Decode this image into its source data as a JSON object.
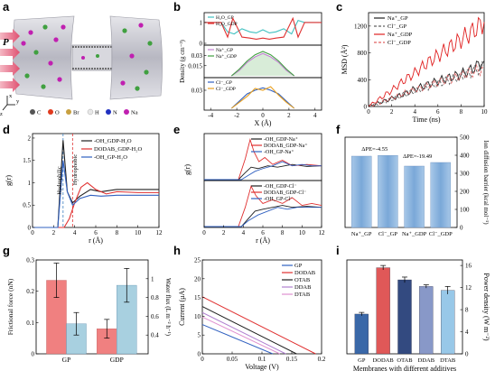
{
  "panels": {
    "a": {
      "letter": "a",
      "pressure_label": "P",
      "axis_labels": {
        "x": "x",
        "y": "y",
        "z": "z"
      },
      "atom_legend": [
        {
          "label": "C",
          "color": "#555555"
        },
        {
          "label": "O",
          "color": "#e03a1e"
        },
        {
          "label": "Br",
          "color": "#c8a040"
        },
        {
          "label": "H",
          "color": "#e8e8e8"
        },
        {
          "label": "N",
          "color": "#2030c0"
        },
        {
          "label": "Na",
          "color": "#c020b0"
        }
      ]
    },
    "b": {
      "letter": "b"
    },
    "c": {
      "letter": "c"
    },
    "d": {
      "letter": "d"
    },
    "e": {
      "letter": "e"
    },
    "f": {
      "letter": "f"
    },
    "g": {
      "letter": "g"
    },
    "h": {
      "letter": "h"
    },
    "i": {
      "letter": "i"
    }
  },
  "chart_data": [
    {
      "id": "b",
      "type": "line",
      "xlabel": "X (Å)",
      "ylabel": "Density (g cm⁻³)",
      "x_ticks": [
        -4,
        -2,
        0,
        2,
        4
      ],
      "xlim": [
        -4.5,
        4.5
      ],
      "subplots": [
        {
          "ylim": [
            0,
            1.3
          ],
          "y_ticks": [
            0,
            1
          ],
          "series": [
            {
              "name": "H₂O_GP",
              "color": "#40c0c0",
              "x": [
                -4.5,
                -3.2,
                -2.7,
                -2.2,
                -1.6,
                -1.0,
                -0.5,
                0,
                0.5,
                1.0,
                1.6,
                2.2,
                2.7,
                3.2,
                4.5
              ],
              "y": [
                1.0,
                1.0,
                0.55,
                0.45,
                0.7,
                0.55,
                0.5,
                0.65,
                0.5,
                0.55,
                0.7,
                0.45,
                1.1,
                1.0,
                1.0
              ]
            },
            {
              "name": "H₂O_GDP",
              "color": "#e03030",
              "x": [
                -4.5,
                -3.2,
                -2.7,
                -2.3,
                -1.6,
                -1.0,
                -0.5,
                0,
                0.5,
                1.0,
                1.6,
                2.3,
                2.7,
                3.2,
                4.5
              ],
              "y": [
                1.0,
                1.0,
                0.3,
                1.2,
                0.3,
                0.25,
                0.2,
                0.25,
                0.2,
                0.25,
                0.3,
                1.2,
                0.3,
                1.0,
                1.0
              ]
            }
          ]
        },
        {
          "ylim": [
            0,
            0.04
          ],
          "y_ticks": [
            0.015,
            0.03
          ],
          "series": [
            {
              "name": "Na⁺_GP",
              "color": "#c080d0",
              "x": [
                -2.4,
                -1.8,
                -1.2,
                -0.6,
                0,
                0.6,
                1.2,
                1.8,
                2.4
              ],
              "y": [
                0,
                0.008,
                0.02,
                0.028,
                0.033,
                0.028,
                0.02,
                0.008,
                0
              ]
            },
            {
              "name": "Na⁺_GDP",
              "color": "#40a040",
              "x": [
                -2.4,
                -1.8,
                -1.2,
                -0.6,
                0,
                0.6,
                1.2,
                1.8,
                2.4
              ],
              "y": [
                0,
                0.01,
                0.022,
                0.031,
                0.036,
                0.031,
                0.022,
                0.01,
                0
              ]
            }
          ]
        },
        {
          "ylim": [
            0,
            0.045
          ],
          "y_ticks": [
            0.03
          ],
          "series": [
            {
              "name": "Cl⁻_GP",
              "color": "#3060c0",
              "x": [
                -2.4,
                -1.8,
                -1.2,
                -0.6,
                0,
                0.6,
                1.2,
                1.8,
                2.4
              ],
              "y": [
                0,
                0.012,
                0.024,
                0.03,
                0.034,
                0.03,
                0.024,
                0.012,
                0
              ]
            },
            {
              "name": "Cl⁻_GDP",
              "color": "#e8a020",
              "x": [
                -2.4,
                -1.8,
                -1.2,
                -0.6,
                0,
                0.6,
                1.2,
                1.8,
                2.4
              ],
              "y": [
                0,
                0.01,
                0.02,
                0.033,
                0.03,
                0.036,
                0.022,
                0.01,
                0
              ]
            }
          ]
        }
      ]
    },
    {
      "id": "c",
      "type": "line",
      "xlabel": "Time (ns)",
      "ylabel": "MSD (Å²)",
      "xlim": [
        0,
        10
      ],
      "ylim": [
        0,
        1400
      ],
      "x_ticks": [
        0,
        2,
        4,
        6,
        8,
        10
      ],
      "y_ticks": [
        0,
        400,
        800,
        1200
      ],
      "series": [
        {
          "name": "Na⁺_GP",
          "color": "#202020",
          "dash": false,
          "x": [
            0,
            1,
            2,
            3,
            4,
            5,
            6,
            7,
            8,
            9,
            10
          ],
          "y": [
            0,
            60,
            120,
            180,
            260,
            320,
            380,
            430,
            480,
            560,
            680
          ]
        },
        {
          "name": "Cl⁻_GP",
          "color": "#606060",
          "dash": true,
          "x": [
            0,
            1,
            2,
            3,
            4,
            5,
            6,
            7,
            8,
            9,
            10
          ],
          "y": [
            0,
            50,
            110,
            170,
            230,
            290,
            340,
            400,
            450,
            520,
            600
          ]
        },
        {
          "name": "Na⁺_GDP",
          "color": "#e02020",
          "dash": false,
          "x": [
            0,
            1,
            2,
            3,
            4,
            5,
            6,
            7,
            8,
            9,
            10
          ],
          "y": [
            0,
            120,
            240,
            380,
            500,
            640,
            760,
            880,
            1000,
            1120,
            1260
          ]
        },
        {
          "name": "Cl⁻_GDP",
          "color": "#e06060",
          "dash": true,
          "x": [
            0,
            1,
            2,
            3,
            4,
            5,
            6,
            7,
            8,
            9,
            10
          ],
          "y": [
            0,
            60,
            120,
            190,
            250,
            300,
            360,
            410,
            460,
            520,
            560
          ]
        }
      ]
    },
    {
      "id": "d",
      "type": "line",
      "xlabel": "r (Å)",
      "ylabel": "g(r)",
      "xlim": [
        0,
        12
      ],
      "ylim": [
        0,
        2.1
      ],
      "x_ticks": [
        0,
        2,
        4,
        6,
        8,
        10,
        12
      ],
      "y_ticks": [
        0.0,
        0.5,
        1.0,
        1.5,
        2.0
      ],
      "annotations": [
        {
          "text": "Hydrophilic",
          "color": "#4080c0"
        },
        {
          "text": "Hydrophobic",
          "color": "#e03030"
        }
      ],
      "vlines": [
        {
          "x": 2.9,
          "color": "#4080c0"
        },
        {
          "x": 3.8,
          "color": "#e03030"
        }
      ],
      "series": [
        {
          "name": "-OH_GDP-H₂O",
          "color": "#202020",
          "x": [
            0,
            2.4,
            2.7,
            2.9,
            3.3,
            3.8,
            4.5,
            5.5,
            6.5,
            8,
            10,
            12
          ],
          "y": [
            0,
            0,
            1.2,
            1.95,
            0.8,
            0.55,
            0.7,
            0.85,
            0.8,
            0.85,
            0.85,
            0.85
          ]
        },
        {
          "name": "DODAB_GDP-H₂O",
          "color": "#e03030",
          "x": [
            0,
            3.0,
            3.5,
            4.0,
            4.6,
            5.2,
            6,
            7,
            8,
            10,
            12
          ],
          "y": [
            0,
            0,
            0.2,
            0.55,
            0.9,
            1.0,
            0.85,
            0.75,
            0.8,
            0.78,
            0.78
          ]
        },
        {
          "name": "-OH_GP-H₂O",
          "color": "#3060c0",
          "x": [
            0,
            2.4,
            2.7,
            2.9,
            3.3,
            3.8,
            4.5,
            5.5,
            6.5,
            8,
            10,
            12
          ],
          "y": [
            0,
            0,
            0.9,
            1.5,
            0.8,
            0.5,
            0.65,
            0.72,
            0.7,
            0.72,
            0.72,
            0.72
          ]
        }
      ]
    },
    {
      "id": "e",
      "type": "line",
      "xlabel": "r (Å)",
      "ylabel": "g(r)",
      "xlim": [
        0,
        12
      ],
      "x_ticks": [
        0,
        2,
        4,
        6,
        8,
        10,
        12
      ],
      "subplots": [
        {
          "ylim": [
            0,
            3.2
          ],
          "series": [
            {
              "name": "-OH_GDP-Na⁺",
              "color": "#202020",
              "x": [
                0,
                3.5,
                4.2,
                4.8,
                5.5,
                6.5,
                7.5,
                9,
                10.5,
                12
              ],
              "y": [
                0,
                0,
                0.5,
                0.9,
                0.8,
                1.0,
                0.9,
                1.1,
                0.95,
                1.0
              ]
            },
            {
              "name": "DODAB_GDP-Na⁺",
              "color": "#e03030",
              "x": [
                0,
                3.5,
                4.2,
                4.7,
                5.1,
                5.6,
                6.2,
                7,
                8,
                9,
                10.5,
                12
              ],
              "y": [
                0,
                0,
                1.5,
                2.9,
                2.0,
                1.3,
                1.6,
                1.1,
                1.4,
                1.0,
                1.1,
                1.0
              ]
            },
            {
              "name": "-OH_GP-Na⁺",
              "color": "#3060c0",
              "x": [
                0,
                3.8,
                4.5,
                5.2,
                6,
                7,
                8,
                9,
                10,
                11,
                12
              ],
              "y": [
                0,
                0,
                0.3,
                0.6,
                0.8,
                1.0,
                1.3,
                1.0,
                1.1,
                1.0,
                1.0
              ]
            }
          ]
        },
        {
          "ylim": [
            0,
            2.3
          ],
          "series": [
            {
              "name": "-OH_GDP-Cl⁻",
              "color": "#202020",
              "x": [
                0,
                3.8,
                4.5,
                5.2,
                6,
                7,
                8,
                9,
                10.5,
                12
              ],
              "y": [
                0,
                0,
                0.4,
                0.8,
                0.9,
                1.0,
                1.1,
                1.0,
                1.05,
                1.0
              ]
            },
            {
              "name": "DODAB_GDP-Cl⁻",
              "color": "#e03030",
              "x": [
                0,
                3.5,
                4.2,
                4.8,
                5.3,
                6,
                7,
                8,
                9,
                10,
                11,
                12
              ],
              "y": [
                0,
                0,
                1.0,
                2.1,
                1.6,
                1.2,
                1.4,
                1.2,
                1.5,
                1.1,
                1.2,
                1.1
              ]
            },
            {
              "name": "-OH_GP-Cl⁻",
              "color": "#3060c0",
              "x": [
                0,
                3.8,
                4.5,
                5.5,
                6.5,
                7.5,
                8.5,
                9.5,
                10.5,
                12
              ],
              "y": [
                0,
                0,
                0.3,
                0.6,
                0.8,
                1.0,
                0.9,
                1.0,
                1.0,
                1.0
              ]
            }
          ]
        }
      ]
    },
    {
      "id": "f",
      "type": "bar",
      "ylabel": "Ion diffusion barrier (kcal mol⁻¹)",
      "ylim": [
        0,
        500
      ],
      "y_ticks": [
        0,
        100,
        200,
        300,
        400,
        500
      ],
      "categories": [
        "Na⁺_GP",
        "Cl⁻_GP",
        "Na⁺_GDP",
        "Cl⁻_GDP"
      ],
      "values": [
        395,
        399,
        340,
        360
      ],
      "annotations": [
        {
          "text": "ΔPE=-4.55"
        },
        {
          "text": "ΔPE=-19.49"
        }
      ]
    },
    {
      "id": "g",
      "type": "bar",
      "ylabel": "Frictional force (nN)",
      "ylabel_right": "Water flux (L m⁻² h⁻¹)",
      "ylim": [
        0.0,
        0.3
      ],
      "y_ticks": [
        0.0,
        0.1,
        0.2,
        0.3
      ],
      "ylim_right": [
        0.2,
        1.2
      ],
      "y_ticks_right": [
        0.4,
        0.6,
        0.8,
        1.0
      ],
      "categories": [
        "GP",
        "GDP"
      ],
      "series": [
        {
          "name": "Frictional force",
          "color": "#f08080",
          "values": [
            0.235,
            0.08
          ],
          "errors": [
            0.055,
            0.03
          ]
        },
        {
          "name": "Water flux",
          "color": "#a8d0e0",
          "values": [
            0.52,
            0.93
          ],
          "errors": [
            0.12,
            0.18
          ]
        }
      ]
    },
    {
      "id": "h",
      "type": "line",
      "xlabel": "Voltage (V)",
      "ylabel": "Current (μA)",
      "xlim": [
        0,
        0.2
      ],
      "ylim": [
        0,
        25
      ],
      "x_ticks": [
        0.0,
        0.05,
        0.1,
        0.15,
        0.2
      ],
      "y_ticks": [
        0,
        5,
        10,
        15,
        20,
        25
      ],
      "series": [
        {
          "name": "GP",
          "color": "#3060c0",
          "x": [
            0,
            0.118
          ],
          "y": [
            7.8,
            0
          ]
        },
        {
          "name": "DODAB",
          "color": "#e03030",
          "x": [
            0,
            0.19
          ],
          "y": [
            15.2,
            0
          ]
        },
        {
          "name": "OTAB",
          "color": "#202020",
          "x": [
            0,
            0.158
          ],
          "y": [
            12.6,
            0
          ]
        },
        {
          "name": "DDAB",
          "color": "#b080d0",
          "x": [
            0,
            0.14
          ],
          "y": [
            11.0,
            0
          ]
        },
        {
          "name": "DTAB",
          "color": "#e090d0",
          "x": [
            0,
            0.13
          ],
          "y": [
            9.8,
            0
          ]
        }
      ]
    },
    {
      "id": "i",
      "type": "bar",
      "xlabel": "Membranes with different additives",
      "ylabel": "Power density (W m⁻²)",
      "ylim": [
        0,
        17
      ],
      "y_ticks": [
        0,
        4,
        8,
        12,
        16
      ],
      "categories": [
        "GP",
        "DODAB",
        "OTAB",
        "DDAB",
        "DTAB"
      ],
      "values": [
        7.2,
        15.6,
        13.4,
        12.2,
        11.5
      ],
      "errors": [
        0.3,
        0.4,
        0.5,
        0.3,
        0.7
      ],
      "colors": [
        "#3a68a8",
        "#e05858",
        "#334a80",
        "#8898c8",
        "#98c8e8"
      ]
    }
  ]
}
